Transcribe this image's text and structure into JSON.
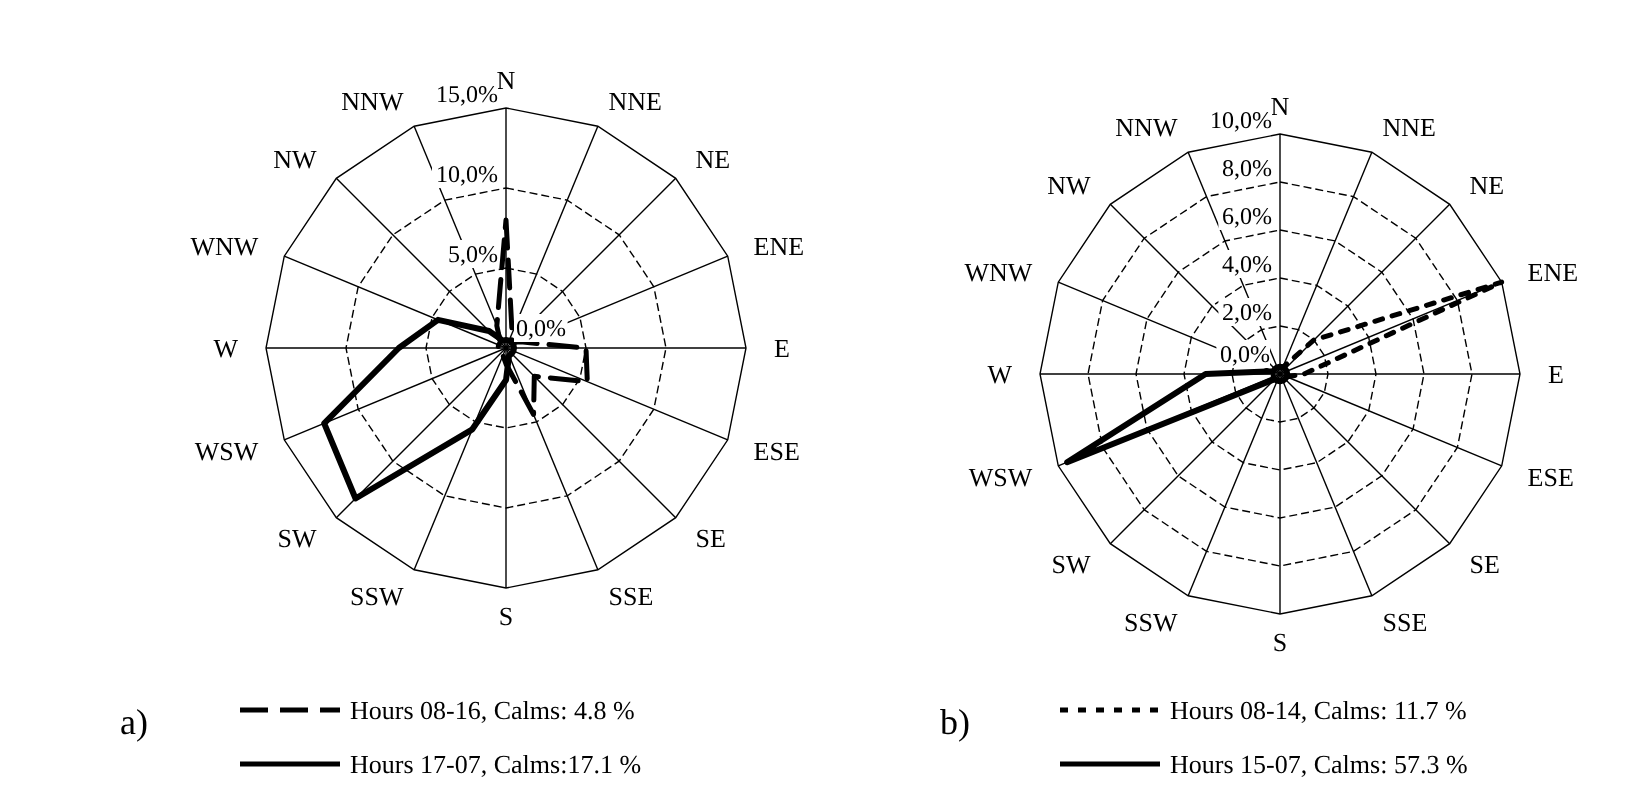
{
  "chart_data": [
    {
      "type": "radar",
      "title": "a)",
      "categories": [
        "N",
        "NNE",
        "NE",
        "ENE",
        "E",
        "ESE",
        "SE",
        "SSE",
        "S",
        "SSW",
        "SW",
        "WSW",
        "W",
        "WNW",
        "NW",
        "NNW"
      ],
      "ylim": [
        0,
        15
      ],
      "yticks": [
        {
          "value": 0,
          "label": "0,0%"
        },
        {
          "value": 5,
          "label": "5,0%"
        },
        {
          "value": 10,
          "label": "10,0%"
        },
        {
          "value": 15,
          "label": "15,0%"
        }
      ],
      "grid": true,
      "legend": "bottom",
      "marker": "none",
      "series": [
        {
          "name": "Hours 08-16, Calms: 4.8 %",
          "color": "#000000",
          "line_style": "dashed",
          "values": [
            8,
            1,
            0.5,
            1,
            5,
            5.5,
            2.5,
            4.5,
            1,
            0.5,
            0.5,
            0.5,
            0.5,
            0.5,
            0.5,
            1.5
          ]
        },
        {
          "name": "Hours 17-07, Calms:17.1 %",
          "color": "#000000",
          "line_style": "solid",
          "values": [
            0.5,
            0.5,
            0.5,
            0.5,
            0.5,
            0.5,
            0.5,
            0.5,
            2,
            5.5,
            13.3,
            12.3,
            6.7,
            4.6,
            1.5,
            0.5
          ]
        }
      ]
    },
    {
      "type": "radar",
      "title": "b)",
      "categories": [
        "N",
        "NNE",
        "NE",
        "ENE",
        "E",
        "ESE",
        "SE",
        "SSE",
        "S",
        "SSW",
        "SW",
        "WSW",
        "W",
        "WNW",
        "NW",
        "NNW"
      ],
      "ylim": [
        0,
        10
      ],
      "yticks": [
        {
          "value": 0,
          "label": "0,0%"
        },
        {
          "value": 2,
          "label": "2,0%"
        },
        {
          "value": 4,
          "label": "4,0%"
        },
        {
          "value": 6,
          "label": "6,0%"
        },
        {
          "value": 8,
          "label": "8,0%"
        },
        {
          "value": 10,
          "label": "10,0%"
        }
      ],
      "grid": true,
      "legend": "bottom",
      "marker": "none",
      "series": [
        {
          "name": "Hours 08-14, Calms: 11.7 %",
          "color": "#000000",
          "line_style": "dotted",
          "values": [
            0.3,
            0.3,
            2,
            10,
            1,
            0.3,
            0.3,
            0.3,
            0.3,
            0.3,
            0.3,
            0.3,
            0.3,
            0.3,
            0.3,
            0.3
          ]
        },
        {
          "name": "Hours 15-07, Calms: 57.3 %",
          "color": "#000000",
          "line_style": "solid",
          "values": [
            0.3,
            0.3,
            0.3,
            0.3,
            0.3,
            0.3,
            0.3,
            0.3,
            0.3,
            0.3,
            0.3,
            9.6,
            3.1,
            0.3,
            0.3,
            0.3
          ]
        }
      ]
    }
  ]
}
